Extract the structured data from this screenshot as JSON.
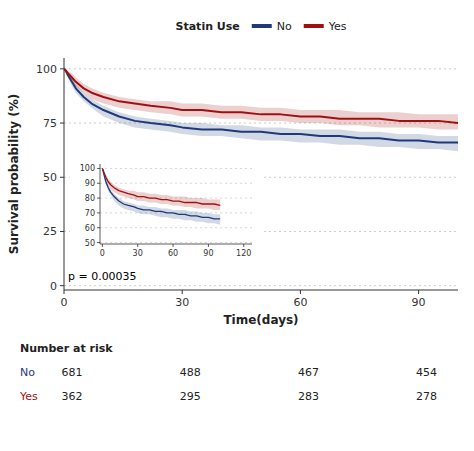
{
  "chart_data": {
    "type": "line",
    "x": [
      0,
      0.5,
      1,
      2,
      3,
      5,
      7,
      10,
      14,
      18,
      22,
      27,
      30,
      35,
      40,
      45,
      50,
      55,
      60,
      65,
      70,
      75,
      80,
      85,
      90,
      95,
      100
    ],
    "series": [
      {
        "name": "No",
        "color": "#1f3a7a",
        "values": [
          100,
          99,
          97,
          94,
          91,
          87,
          84,
          81,
          78,
          76,
          75,
          74,
          73,
          72,
          72,
          71,
          71,
          70,
          70,
          69,
          69,
          68,
          68,
          67,
          67,
          66,
          66
        ],
        "lower": [
          100,
          98,
          96,
          92,
          89,
          85,
          82,
          78,
          75,
          73,
          72,
          71,
          70,
          69,
          69,
          68,
          67,
          67,
          66,
          66,
          65,
          65,
          64,
          64,
          63,
          63,
          62
        ],
        "upper": [
          100,
          100,
          98,
          96,
          93,
          89,
          86,
          83,
          80,
          78,
          77,
          76,
          75,
          75,
          74,
          74,
          73,
          73,
          72,
          72,
          72,
          71,
          71,
          70,
          70,
          69,
          69
        ]
      },
      {
        "name": "Yes",
        "color": "#a01010",
        "values": [
          100,
          99,
          98,
          96,
          94,
          91,
          89,
          87,
          85,
          84,
          83,
          82,
          81,
          81,
          80,
          80,
          79,
          79,
          78,
          78,
          77,
          77,
          77,
          76,
          76,
          76,
          75
        ],
        "lower": [
          100,
          98,
          97,
          94,
          92,
          89,
          86,
          84,
          82,
          81,
          80,
          79,
          78,
          78,
          77,
          77,
          76,
          76,
          75,
          75,
          74,
          74,
          73,
          73,
          73,
          72,
          72
        ],
        "upper": [
          100,
          100,
          99,
          98,
          96,
          93,
          91,
          89,
          87,
          86,
          85,
          85,
          84,
          84,
          83,
          83,
          82,
          82,
          81,
          81,
          81,
          80,
          80,
          80,
          79,
          79,
          79
        ]
      }
    ],
    "xlabel": "Time(days)",
    "ylabel": "Survival probability (%)",
    "xlim": [
      0,
      100
    ],
    "ylim": [
      -2,
      105
    ],
    "xticks": [
      0,
      30,
      60,
      90
    ],
    "yticks": [
      0,
      25,
      50,
      75,
      100
    ],
    "grid": true,
    "legend": "top",
    "legend_title": "Statin Use",
    "annotations": [
      {
        "text": "p = 0.00035",
        "x": 1,
        "y": 1
      }
    ],
    "inset": {
      "xlim": [
        -2,
        127
      ],
      "ylim": [
        49,
        103
      ],
      "xticks": [
        0,
        30,
        60,
        90,
        120
      ],
      "yticks": [
        50,
        60,
        70,
        80,
        90,
        100
      ]
    },
    "risk_table": {
      "title": "Number at risk",
      "times": [
        0,
        30,
        60,
        90
      ],
      "rows": [
        {
          "name": "No",
          "values": [
            681,
            488,
            467,
            454
          ]
        },
        {
          "name": "Yes",
          "values": [
            362,
            295,
            283,
            278
          ]
        }
      ]
    }
  }
}
